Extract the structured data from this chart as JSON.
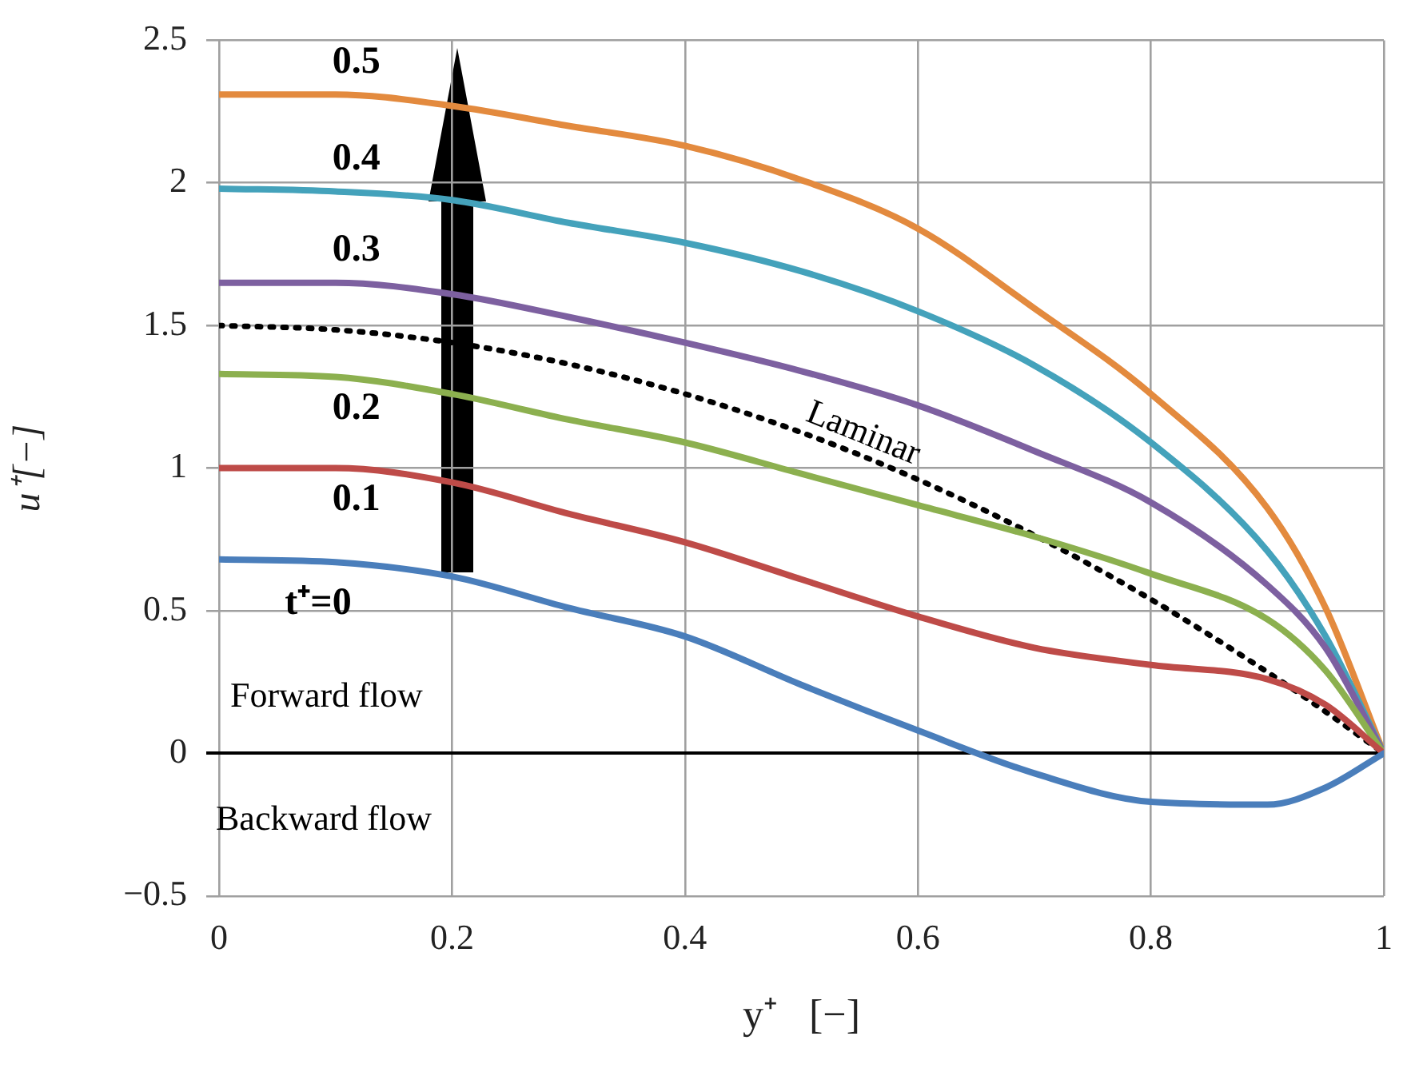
{
  "chart_data": {
    "type": "line",
    "xlabel": "y⁺   [−]",
    "ylabel": "u⁺[−]",
    "x": [
      0,
      0.1,
      0.2,
      0.3,
      0.4,
      0.5,
      0.6,
      0.7,
      0.8,
      0.9,
      0.95,
      1
    ],
    "xlim": [
      0,
      1
    ],
    "xticks": [
      0,
      0.2,
      0.4,
      0.6,
      0.8,
      1
    ],
    "ylim": [
      -0.5,
      2.5
    ],
    "yticks": [
      {
        "value": -0.5,
        "label": "−0.5"
      },
      0,
      0.5,
      1,
      1.5,
      2,
      2.5
    ],
    "grid": true,
    "legend": false,
    "marker": "none",
    "series": [
      {
        "name": "t⁺=0",
        "color": "#4a7ebb",
        "values": [
          0.68,
          0.67,
          0.62,
          0.51,
          0.41,
          0.24,
          0.08,
          -0.07,
          -0.17,
          -0.18,
          -0.12,
          0
        ]
      },
      {
        "name": "0.1",
        "color": "#be4b48",
        "values": [
          1.0,
          1.0,
          0.95,
          0.84,
          0.74,
          0.61,
          0.48,
          0.37,
          0.31,
          0.26,
          0.17,
          0
        ]
      },
      {
        "name": "0.2",
        "color": "#8cb04f",
        "values": [
          1.33,
          1.32,
          1.26,
          1.17,
          1.09,
          0.98,
          0.87,
          0.76,
          0.63,
          0.47,
          0.29,
          0
        ]
      },
      {
        "name": "0.3",
        "color": "#7d60a0",
        "values": [
          1.65,
          1.65,
          1.61,
          1.53,
          1.44,
          1.34,
          1.22,
          1.06,
          0.88,
          0.59,
          0.37,
          0
        ]
      },
      {
        "name": "0.4",
        "color": "#44a2bb",
        "values": [
          1.98,
          1.97,
          1.94,
          1.86,
          1.79,
          1.69,
          1.55,
          1.36,
          1.09,
          0.71,
          0.41,
          0
        ]
      },
      {
        "name": "0.5",
        "color": "#e38a3e",
        "values": [
          2.31,
          2.31,
          2.27,
          2.2,
          2.13,
          2.01,
          1.84,
          1.56,
          1.26,
          0.86,
          0.51,
          0
        ]
      },
      {
        "name": "Laminar",
        "color": "#000000",
        "line_style": "dotted",
        "values": [
          1.5,
          1.485,
          1.44,
          1.365,
          1.26,
          1.125,
          0.96,
          0.765,
          0.54,
          0.285,
          0.146,
          0
        ]
      }
    ],
    "annotations": [
      "Forward flow",
      "Backward flow"
    ]
  }
}
